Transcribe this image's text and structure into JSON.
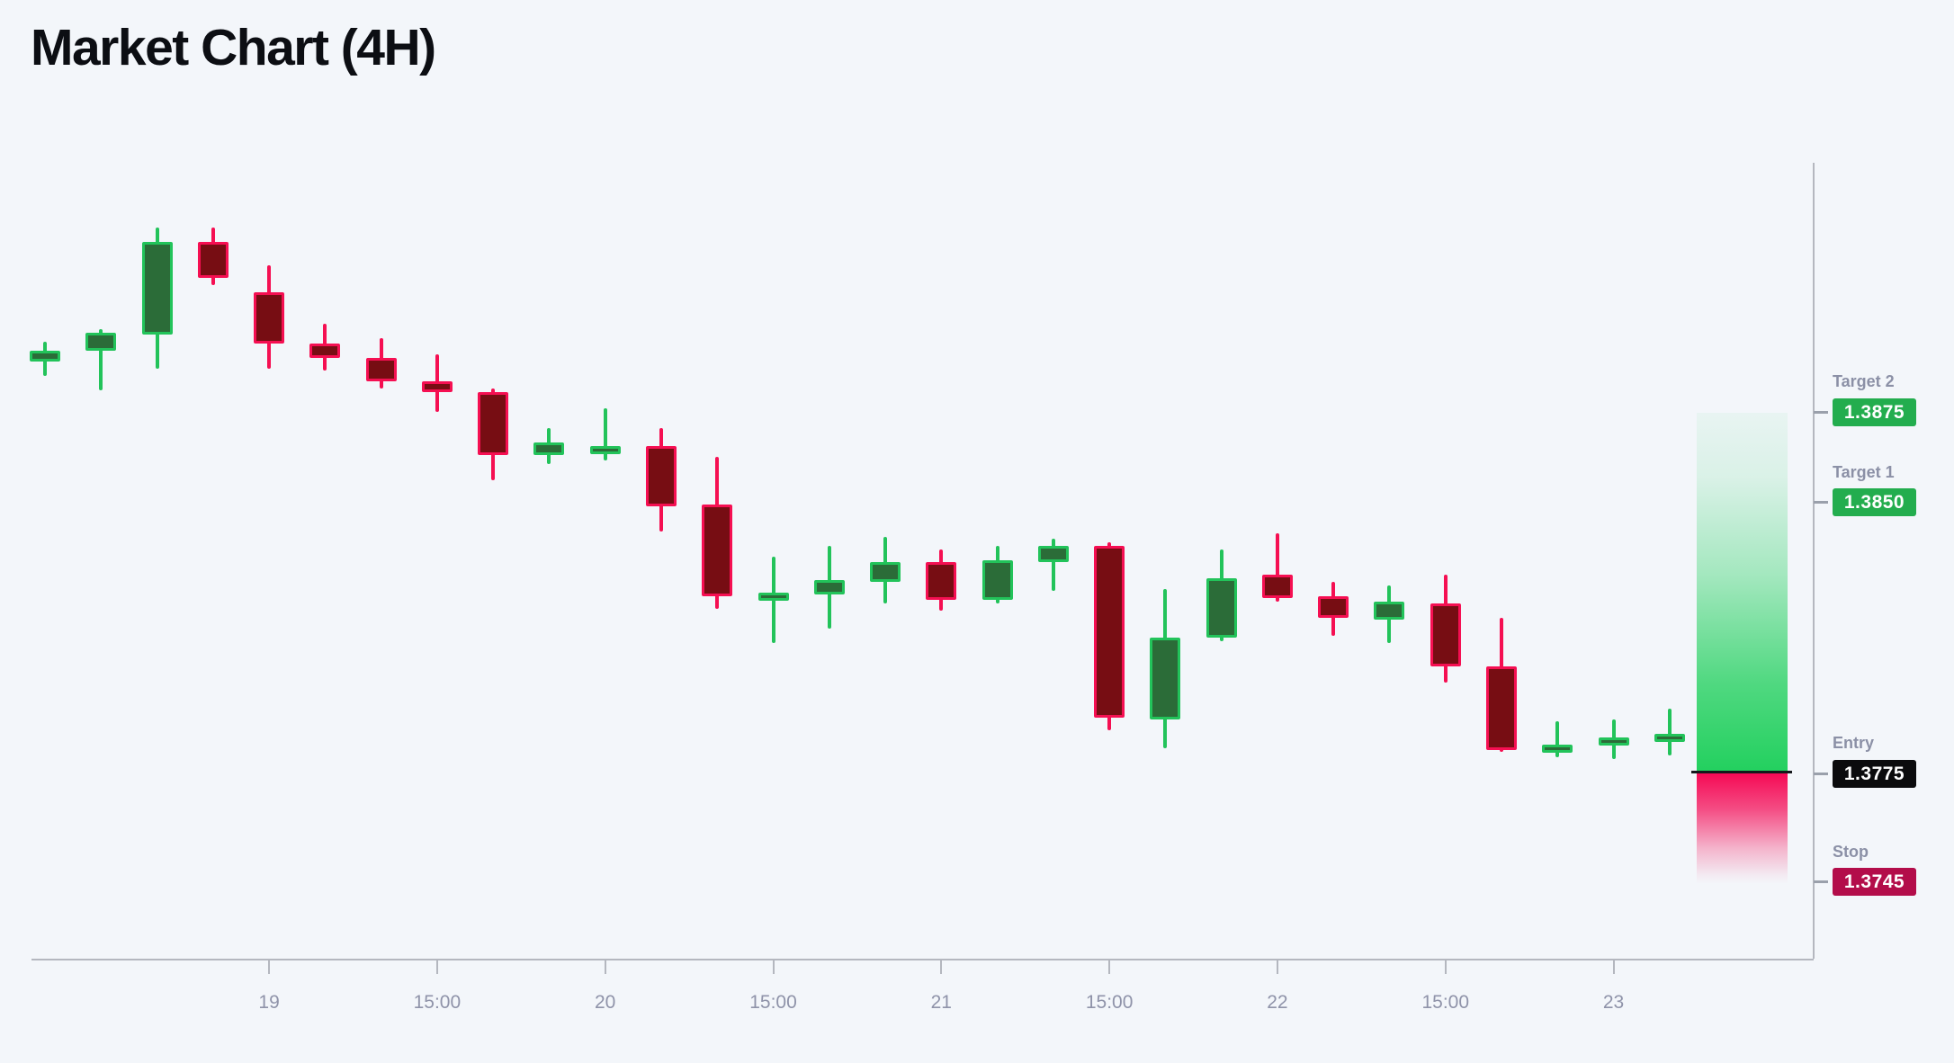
{
  "page": {
    "title": "Market Chart (4H)",
    "background_color": "#f3f6fa"
  },
  "colors": {
    "up_fill": "#2b6c38",
    "up_stroke": "#22c35a",
    "down_fill": "#770d13",
    "down_stroke": "#f50f52",
    "zone_green": "#22d05e",
    "zone_pink": "#f50a55",
    "entry_line": "#15181c",
    "axis": "#b4b7bf",
    "axis_label": "#8f93a9",
    "marker_label": "#8b90a6",
    "badge_target": "#23ad4e",
    "badge_entry": "#0b0b0d",
    "badge_stop": "#b30d4a",
    "badge_text": "#ffffff",
    "title": "#0c0e13"
  },
  "chart_data": {
    "type": "candlestick",
    "timeframe": "4H",
    "title": "Market Chart (4H)",
    "x_axis": {
      "tick_labels": [
        {
          "index": 4,
          "label": "19"
        },
        {
          "index": 7,
          "label": "15:00"
        },
        {
          "index": 10,
          "label": "20"
        },
        {
          "index": 13,
          "label": "15:00"
        },
        {
          "index": 16,
          "label": "21"
        },
        {
          "index": 19,
          "label": "15:00"
        },
        {
          "index": 22,
          "label": "22"
        },
        {
          "index": 25,
          "label": "15:00"
        },
        {
          "index": 28,
          "label": "23"
        }
      ]
    },
    "y_axis": {
      "visible_range": [
        1.372,
        1.3945
      ],
      "labels_shown": false
    },
    "grid": "off",
    "legend": "none",
    "candles": [
      {
        "o": 1.3889,
        "h": 1.38945,
        "l": 1.3885,
        "c": 1.3892
      },
      {
        "o": 1.3892,
        "h": 1.3898,
        "l": 1.3881,
        "c": 1.3897
      },
      {
        "o": 1.38965,
        "h": 1.3926,
        "l": 1.3887,
        "c": 1.3922
      },
      {
        "o": 1.3922,
        "h": 1.3926,
        "l": 1.391,
        "c": 1.3912
      },
      {
        "o": 1.3908,
        "h": 1.39155,
        "l": 1.3887,
        "c": 1.3894
      },
      {
        "o": 1.3894,
        "h": 1.38995,
        "l": 1.38865,
        "c": 1.389
      },
      {
        "o": 1.389,
        "h": 1.38955,
        "l": 1.38815,
        "c": 1.38835
      },
      {
        "o": 1.38835,
        "h": 1.3891,
        "l": 1.3875,
        "c": 1.38805
      },
      {
        "o": 1.38805,
        "h": 1.38815,
        "l": 1.3856,
        "c": 1.3863
      },
      {
        "o": 1.3863,
        "h": 1.38705,
        "l": 1.38605,
        "c": 1.38665
      },
      {
        "o": 1.38645,
        "h": 1.3876,
        "l": 1.38615,
        "c": 1.38655
      },
      {
        "o": 1.38655,
        "h": 1.38705,
        "l": 1.3842,
        "c": 1.3849
      },
      {
        "o": 1.38495,
        "h": 1.38625,
        "l": 1.38205,
        "c": 1.3824
      },
      {
        "o": 1.3824,
        "h": 1.3835,
        "l": 1.3811,
        "c": 1.3825
      },
      {
        "o": 1.38245,
        "h": 1.3838,
        "l": 1.3815,
        "c": 1.38285
      },
      {
        "o": 1.3828,
        "h": 1.38405,
        "l": 1.3822,
        "c": 1.38335
      },
      {
        "o": 1.38335,
        "h": 1.3837,
        "l": 1.382,
        "c": 1.3823
      },
      {
        "o": 1.3823,
        "h": 1.3838,
        "l": 1.3822,
        "c": 1.3834
      },
      {
        "o": 1.38335,
        "h": 1.384,
        "l": 1.38255,
        "c": 1.3838
      },
      {
        "o": 1.3838,
        "h": 1.3839,
        "l": 1.3787,
        "c": 1.37905
      },
      {
        "o": 1.379,
        "h": 1.3826,
        "l": 1.3782,
        "c": 1.38125
      },
      {
        "o": 1.38125,
        "h": 1.3837,
        "l": 1.38115,
        "c": 1.3829
      },
      {
        "o": 1.383,
        "h": 1.38415,
        "l": 1.38225,
        "c": 1.38235
      },
      {
        "o": 1.3824,
        "h": 1.3828,
        "l": 1.3813,
        "c": 1.3818
      },
      {
        "o": 1.38175,
        "h": 1.3827,
        "l": 1.3811,
        "c": 1.38225
      },
      {
        "o": 1.3822,
        "h": 1.383,
        "l": 1.38,
        "c": 1.38045
      },
      {
        "o": 1.38045,
        "h": 1.3818,
        "l": 1.3781,
        "c": 1.37815
      },
      {
        "o": 1.37815,
        "h": 1.37895,
        "l": 1.37795,
        "c": 1.3783
      },
      {
        "o": 1.3783,
        "h": 1.379,
        "l": 1.3779,
        "c": 1.3785
      },
      {
        "o": 1.3784,
        "h": 1.3793,
        "l": 1.378,
        "c": 1.3786
      }
    ],
    "markers": [
      {
        "id": "target2",
        "label": "Target 2",
        "value": "1.3875",
        "price": 1.3875,
        "badge": "target"
      },
      {
        "id": "target1",
        "label": "Target 1",
        "value": "1.3850",
        "price": 1.385,
        "badge": "target"
      },
      {
        "id": "entry",
        "label": "Entry",
        "value": "1.3775",
        "price": 1.3775,
        "badge": "entry"
      },
      {
        "id": "stop",
        "label": "Stop",
        "value": "1.3745",
        "price": 1.3745,
        "badge": "stop"
      }
    ],
    "risk_reward_zone": {
      "reward_top_price": 1.3875,
      "entry_price": 1.3775,
      "stop_price": 1.3745
    }
  }
}
